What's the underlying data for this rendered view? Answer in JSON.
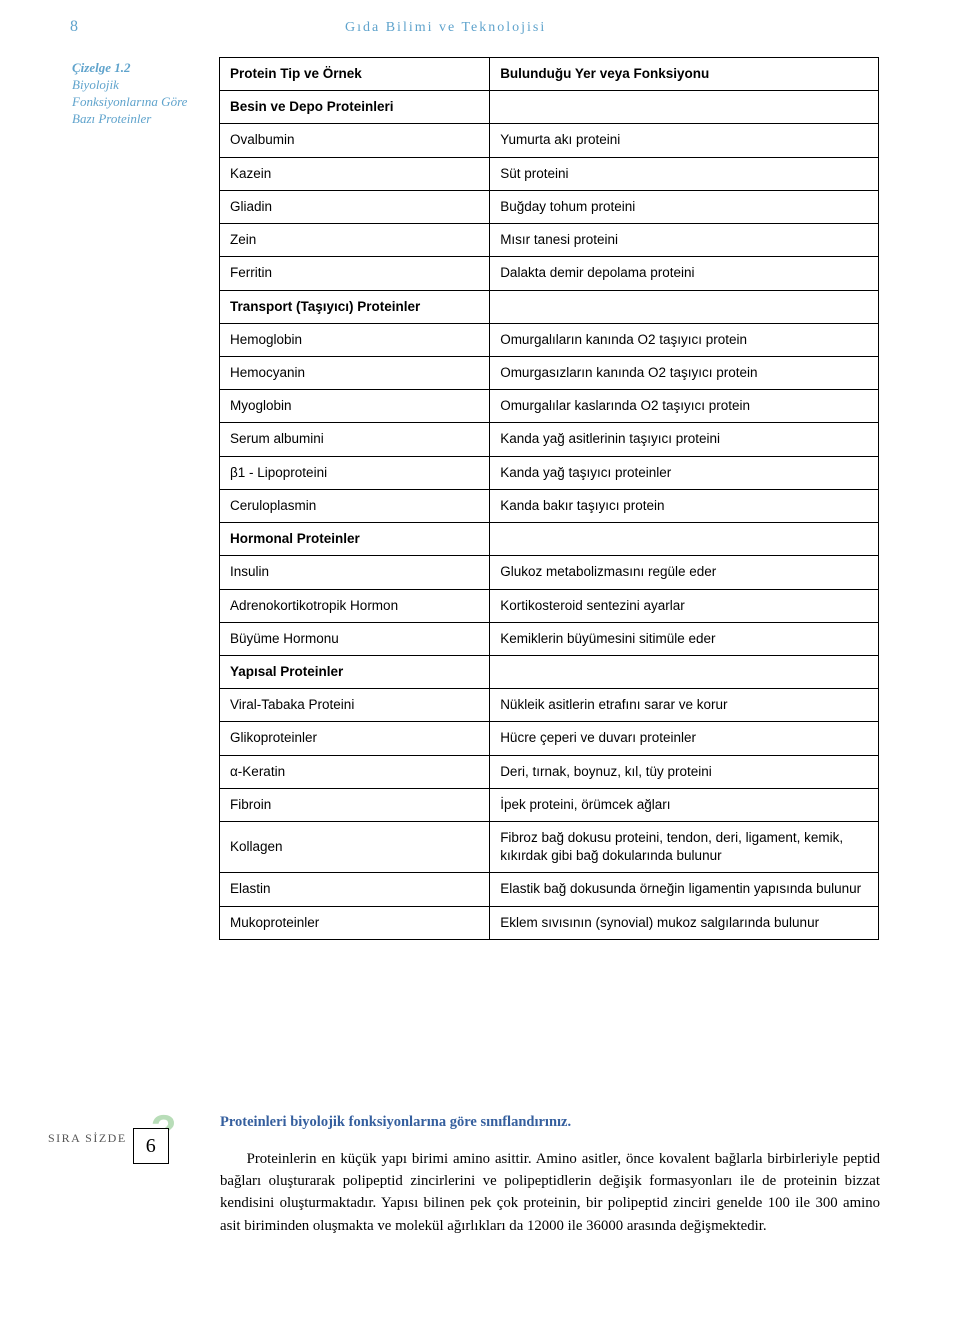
{
  "header": {
    "page_number": "8",
    "running_title": "Gıda Bilimi ve Teknolojisi"
  },
  "cizelge": {
    "label": "Çizelge 1.2",
    "caption": "Biyolojik Fonksiyonlarına Göre Bazı Proteinler"
  },
  "table": {
    "col1_header": "Protein Tip ve Örnek",
    "col2_header": "Bulunduğu Yer veya Fonksiyonu",
    "rows": [
      {
        "type": "section",
        "c1": "Besin ve Depo Proteinleri",
        "c2": ""
      },
      {
        "type": "data",
        "c1": "Ovalbumin",
        "c2": "Yumurta akı proteini"
      },
      {
        "type": "data",
        "c1": "Kazein",
        "c2": "Süt proteini"
      },
      {
        "type": "data",
        "c1": "Gliadin",
        "c2": "Buğday tohum proteini"
      },
      {
        "type": "data",
        "c1": "Zein",
        "c2": "Mısır tanesi proteini"
      },
      {
        "type": "data",
        "c1": "Ferritin",
        "c2": "Dalakta demir depolama proteini"
      },
      {
        "type": "section",
        "c1": "Transport (Taşıyıcı) Proteinler",
        "c2": ""
      },
      {
        "type": "data",
        "c1": "Hemoglobin",
        "c2": "Omurgalıların kanında O2 taşıyıcı protein"
      },
      {
        "type": "data",
        "c1": "Hemocyanin",
        "c2": "Omurgasızların kanında O2 taşıyıcı protein"
      },
      {
        "type": "data",
        "c1": "Myoglobin",
        "c2": "Omurgalılar kaslarında O2 taşıyıcı protein"
      },
      {
        "type": "data",
        "c1": "Serum albumini",
        "c2": "Kanda yağ asitlerinin taşıyıcı proteini"
      },
      {
        "type": "data",
        "c1": "β1 - Lipoproteini",
        "c2": "Kanda yağ taşıyıcı proteinler"
      },
      {
        "type": "data",
        "c1": "Ceruloplasmin",
        "c2": "Kanda bakır taşıyıcı protein"
      },
      {
        "type": "section",
        "c1": "Hormonal Proteinler",
        "c2": ""
      },
      {
        "type": "data",
        "c1": "Insulin",
        "c2": "Glukoz metabolizmasını regüle eder"
      },
      {
        "type": "data",
        "c1": "Adrenokortikotropik Hormon",
        "c2": "Kortikosteroid sentezini ayarlar"
      },
      {
        "type": "data",
        "c1": "Büyüme Hormonu",
        "c2": "Kemiklerin büyümesini sitimüle eder"
      },
      {
        "type": "section",
        "c1": "Yapısal Proteinler",
        "c2": ""
      },
      {
        "type": "data",
        "c1": "Viral-Tabaka Proteini",
        "c2": "Nükleik asitlerin etrafını sarar ve korur"
      },
      {
        "type": "data",
        "c1": "Glikoproteinler",
        "c2": "Hücre çeperi ve duvarı proteinler"
      },
      {
        "type": "data",
        "c1": "α-Keratin",
        "c2": "Deri, tırnak, boynuz, kıl, tüy proteini"
      },
      {
        "type": "data",
        "c1": "Fibroin",
        "c2": "İpek proteini, örümcek ağları"
      },
      {
        "type": "data",
        "c1": "Kollagen",
        "c2": "Fibroz bağ dokusu proteini, tendon, deri, ligament, kemik, kıkırdak gibi bağ dokularında bulunur"
      },
      {
        "type": "data",
        "c1": "Elastin",
        "c2": "Elastik bağ dokusunda örneğin ligamentin yapısında bulunur"
      },
      {
        "type": "data",
        "c1": "Mukoproteinler",
        "c2": "Eklem sıvısının (synovial) mukoz salgılarında bulunur"
      }
    ]
  },
  "sira": {
    "label": "SIRA SİZDE",
    "number": "6",
    "q_mark": "?"
  },
  "prompt": "Proteinleri biyolojik fonksiyonlarına göre sınıflandırınız.",
  "body": "Proteinlerin en küçük yapı birimi amino asittir. Amino asitler, önce kovalent bağlarla birbirleriyle peptid bağları oluşturarak polipeptid zincirlerini ve polipeptidlerin değişik formasyonları ile de proteinin bizzat kendisini oluşturmaktadır. Yapısı bilinen pek çok proteinin, bir polipeptid zinciri genelde 100 ile 300 amino asit biriminden oluşmakta ve molekül ağırlıkları da 12000 ile 36000 arasında değişmektedir.",
  "colors": {
    "header_blue": "#5fa3cc",
    "prompt_blue": "#355f9e",
    "q_green": "#b8ddb8",
    "text": "#000000",
    "bg": "#ffffff"
  }
}
